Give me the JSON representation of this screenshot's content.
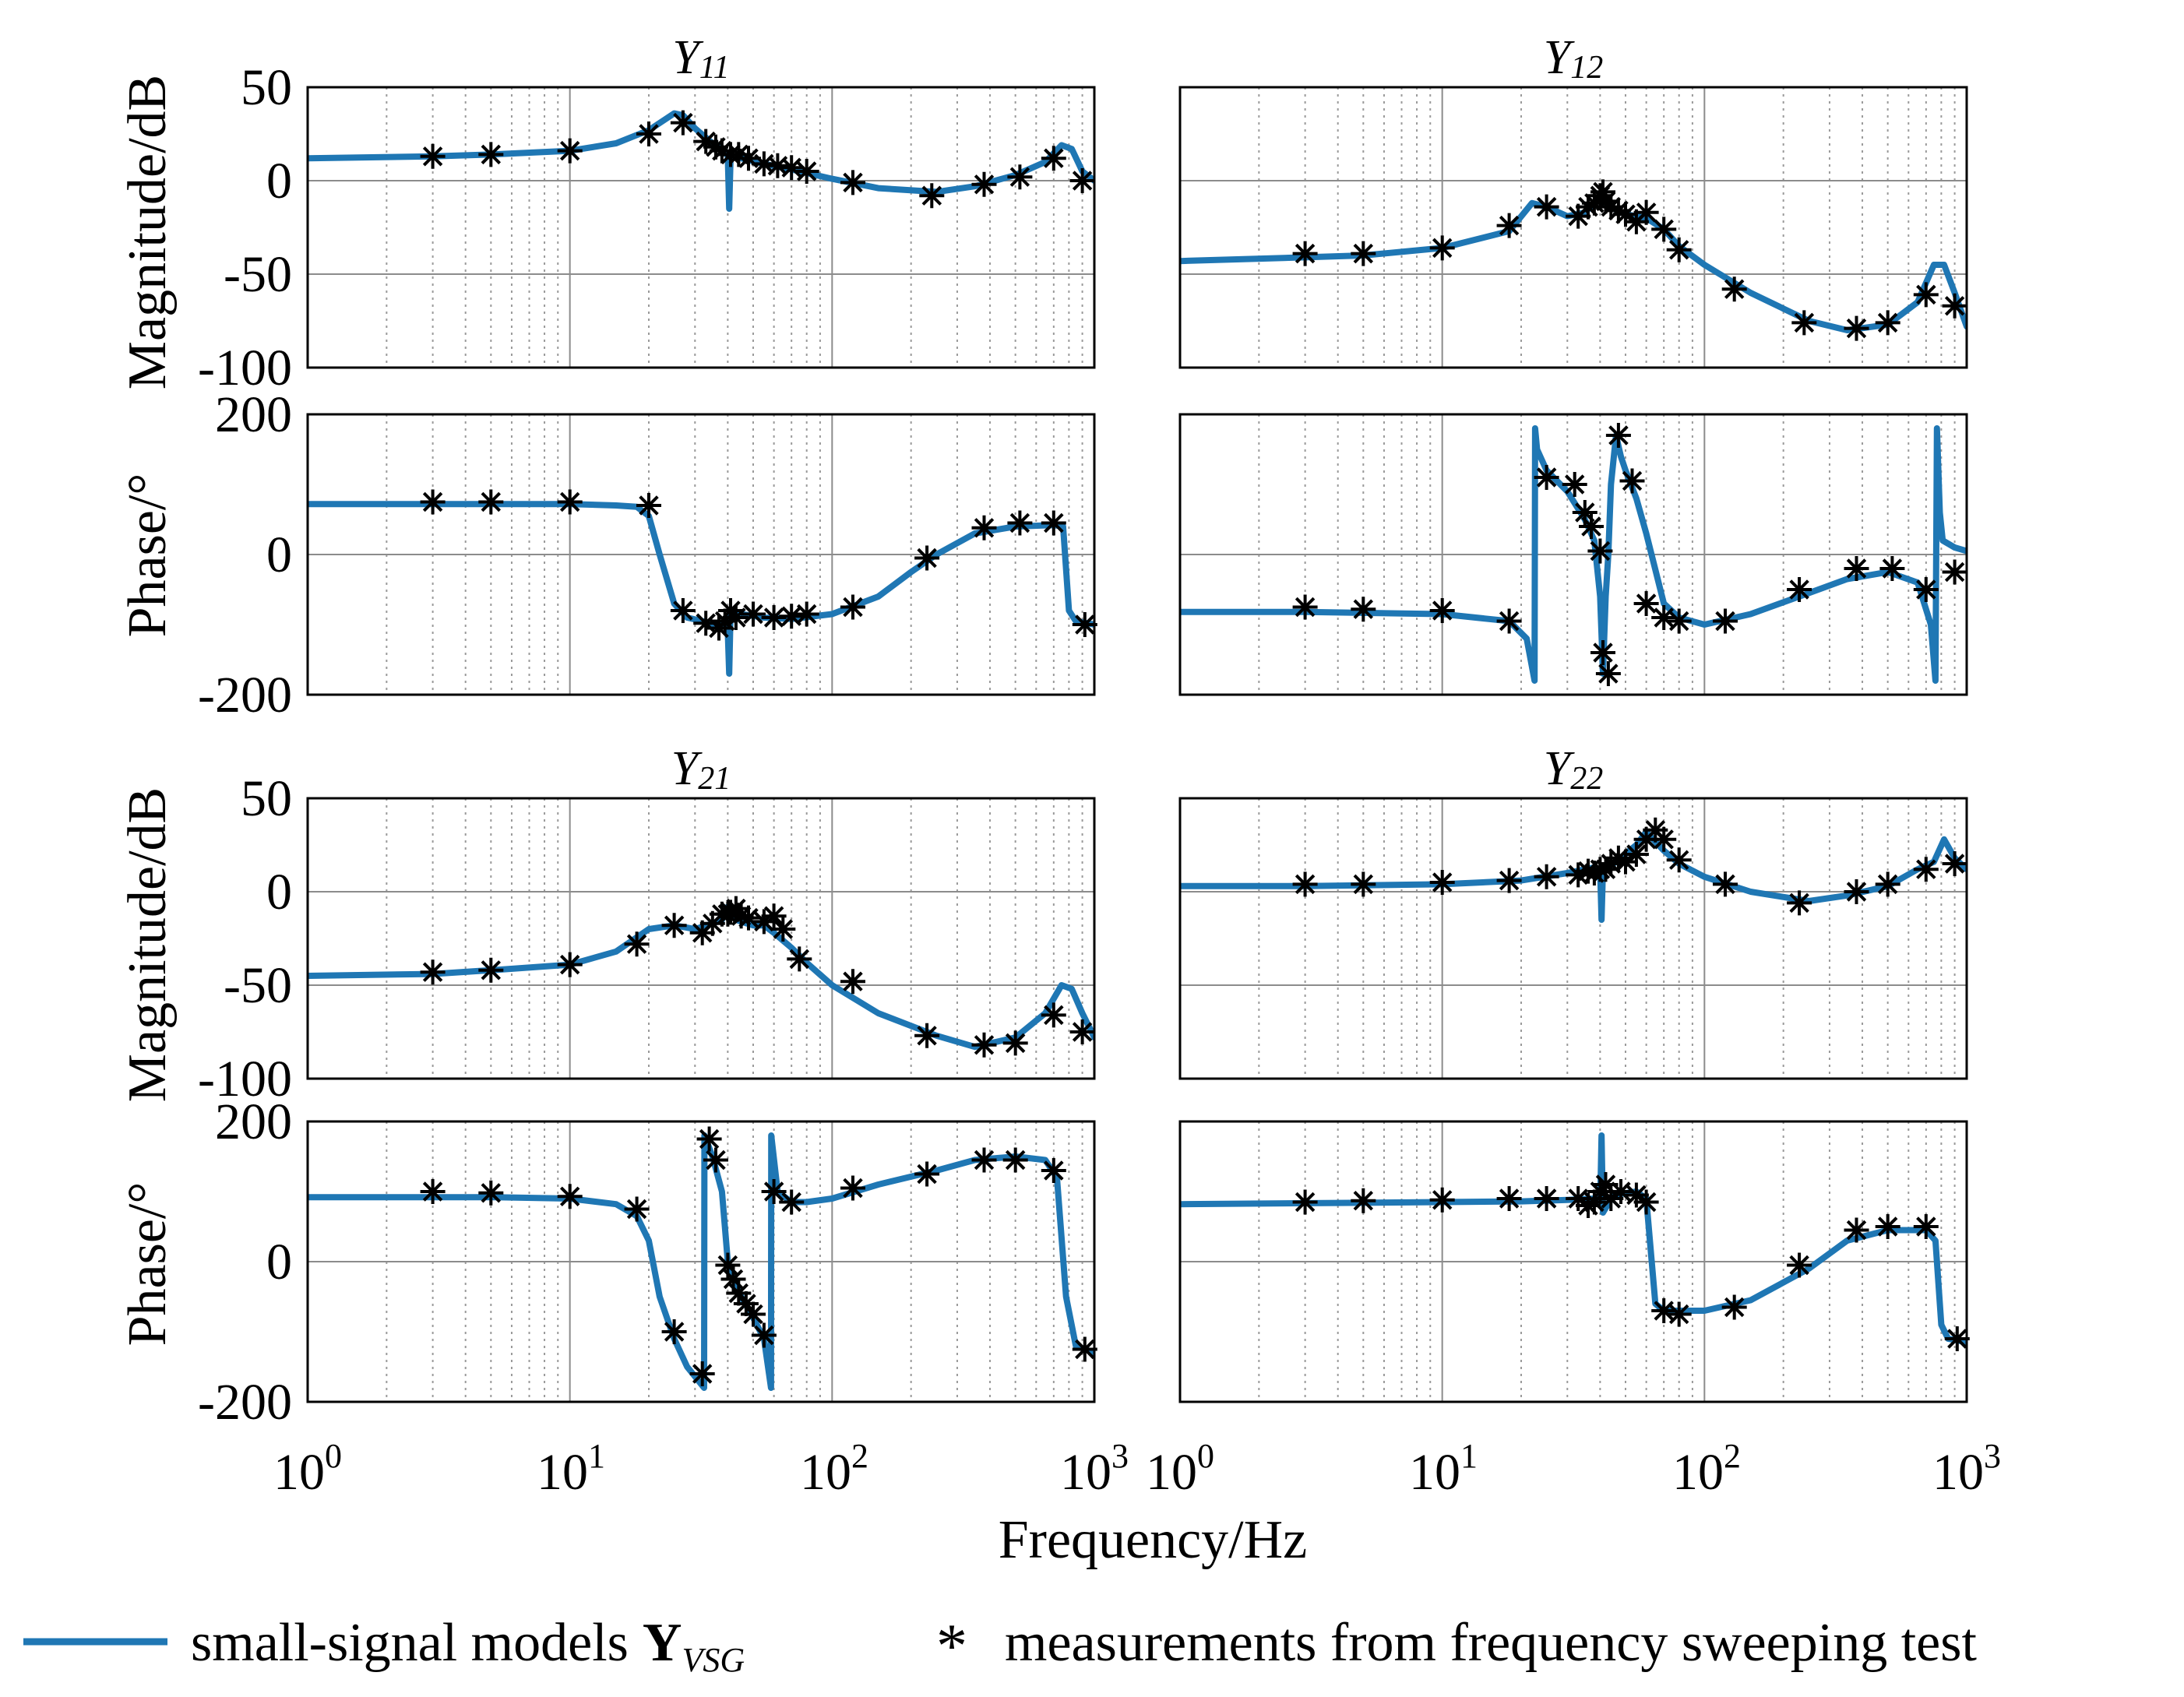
{
  "colors": {
    "model": "#1f77b4",
    "measurement": "#000000",
    "grid_major": "#8c8c8c",
    "grid_minor": "#9a9a9a"
  },
  "x_axis": {
    "label": "Frequency/Hz",
    "scale": "log",
    "xlim": [
      1,
      1000
    ],
    "ticks": [
      {
        "base": "10",
        "exp": "0"
      },
      {
        "base": "10",
        "exp": "1"
      },
      {
        "base": "10",
        "exp": "2"
      },
      {
        "base": "10",
        "exp": "3"
      }
    ]
  },
  "y_labels": {
    "magnitude": "Magnitude/dB",
    "phase": "Phase/°"
  },
  "mag_ticks": [
    "50",
    "0",
    "-50",
    "-100"
  ],
  "phase_ticks": [
    "200",
    "0",
    "-200"
  ],
  "legend": {
    "model_label": "small-signal models",
    "model_symbol": "Y",
    "model_subscript": "VSG",
    "marker_glyph": "*",
    "measurement_label": "measurements from frequency sweeping test"
  },
  "chart_data": [
    {
      "type": "line",
      "title": "Y",
      "title_sub": "11",
      "kind": "magnitude",
      "xlabel": "Frequency/Hz",
      "ylabel": "Magnitude/dB",
      "xscale": "log",
      "xlim": [
        1,
        1000
      ],
      "ylim": [
        -100,
        50
      ],
      "grid": true,
      "series": [
        {
          "name": "small-signal models Y_VSG",
          "x": [
            1,
            3,
            5,
            10,
            15,
            20,
            25,
            27,
            30,
            35,
            39,
            40,
            40.5,
            41,
            45,
            55,
            70,
            100,
            150,
            250,
            350,
            500,
            650,
            750,
            820,
            900,
            1000
          ],
          "y": [
            12,
            13,
            14,
            16,
            20,
            27,
            36,
            35,
            28,
            20,
            16,
            13,
            -15,
            13,
            12,
            9,
            6,
            1,
            -4,
            -6,
            -3,
            3,
            10,
            19,
            17,
            5,
            0
          ]
        },
        {
          "name": "measurements from frequency sweeping test",
          "x": [
            3,
            5,
            10,
            20,
            27,
            33,
            36,
            38,
            41,
            44,
            48,
            55,
            62,
            70,
            80,
            120,
            240,
            380,
            520,
            700,
            900
          ],
          "y": [
            13,
            14,
            16,
            25,
            31,
            21,
            18,
            16,
            14,
            14,
            12,
            9,
            8,
            7,
            5,
            -1,
            -8,
            -2,
            2,
            12,
            0
          ]
        }
      ]
    },
    {
      "type": "line",
      "title": "Y",
      "title_sub": "12",
      "kind": "magnitude",
      "xlabel": "Frequency/Hz",
      "ylabel": "Magnitude/dB",
      "xscale": "log",
      "xlim": [
        1,
        1000
      ],
      "ylim": [
        -100,
        50
      ],
      "grid": true,
      "series": [
        {
          "name": "small-signal models Y_VSG",
          "x": [
            1,
            3,
            5,
            10,
            18,
            22,
            25,
            30,
            35,
            38,
            40,
            41,
            43,
            45,
            50,
            55,
            60,
            70,
            80,
            100,
            150,
            250,
            350,
            500,
            650,
            750,
            820,
            900,
            1000
          ],
          "y": [
            -43,
            -41,
            -40,
            -36,
            -27,
            -12,
            -14,
            -19,
            -17,
            -12,
            -8,
            -12,
            -14,
            -15,
            -18,
            -19,
            -20,
            -26,
            -35,
            -45,
            -60,
            -75,
            -80,
            -77,
            -65,
            -45,
            -45,
            -60,
            -78
          ]
        },
        {
          "name": "measurements from frequency sweeping test",
          "x": [
            3,
            5,
            10,
            18,
            25,
            33,
            36,
            38,
            40,
            41,
            42,
            44,
            47,
            50,
            55,
            60,
            70,
            80,
            130,
            240,
            380,
            500,
            700,
            900
          ],
          "y": [
            -39,
            -39,
            -36,
            -24,
            -14,
            -19,
            -14,
            -12,
            -8,
            -6,
            -11,
            -14,
            -16,
            -18,
            -22,
            -17,
            -26,
            -37,
            -58,
            -76,
            -79,
            -76,
            -61,
            -67
          ]
        }
      ]
    },
    {
      "type": "line",
      "title": "Y",
      "title_sub": "11",
      "kind": "phase",
      "xlabel": "Frequency/Hz",
      "ylabel": "Phase/°",
      "xscale": "log",
      "xlim": [
        1,
        1000
      ],
      "ylim": [
        -200,
        200
      ],
      "grid": true,
      "series": [
        {
          "name": "small-signal models Y_VSG",
          "x": [
            1,
            5,
            10,
            15,
            18,
            20,
            22,
            25,
            28,
            32,
            36,
            39,
            40,
            40.5,
            41,
            45,
            55,
            70,
            100,
            150,
            200,
            250,
            350,
            500,
            700,
            760,
            800,
            850,
            1000
          ],
          "y": [
            72,
            72,
            72,
            70,
            68,
            55,
            0,
            -70,
            -90,
            -95,
            -100,
            -100,
            -110,
            -170,
            -80,
            -85,
            -90,
            -92,
            -85,
            -60,
            -25,
            0,
            30,
            40,
            42,
            40,
            -80,
            -95,
            -100
          ]
        },
        {
          "name": "measurements from frequency sweeping test",
          "x": [
            3,
            5,
            10,
            20,
            27,
            33,
            37,
            39,
            41,
            43,
            50,
            60,
            70,
            80,
            120,
            230,
            380,
            520,
            700,
            920
          ],
          "y": [
            75,
            75,
            75,
            70,
            -80,
            -98,
            -105,
            -95,
            -80,
            -90,
            -85,
            -90,
            -88,
            -85,
            -75,
            -5,
            38,
            45,
            45,
            -100
          ]
        }
      ]
    },
    {
      "type": "line",
      "title": "Y",
      "title_sub": "12",
      "kind": "phase",
      "xlabel": "Frequency/Hz",
      "ylabel": "Phase/°",
      "xscale": "log",
      "xlim": [
        1,
        1000
      ],
      "ylim": [
        -200,
        200
      ],
      "grid": true,
      "series": [
        {
          "name": "small-signal models Y_VSG",
          "x": [
            1,
            3,
            10,
            18,
            21,
            22.5,
            22.6,
            23,
            25,
            30,
            35,
            38,
            40,
            41,
            42,
            43,
            44,
            46,
            48,
            50,
            55,
            60,
            70,
            80,
            100,
            150,
            250,
            350,
            500,
            650,
            730,
            760,
            770,
            790,
            810,
            900,
            1000
          ],
          "y": [
            -82,
            -82,
            -85,
            -95,
            -120,
            -180,
            180,
            150,
            120,
            90,
            50,
            20,
            -60,
            -170,
            -60,
            0,
            100,
            170,
            140,
            120,
            80,
            30,
            -70,
            -90,
            -100,
            -85,
            -55,
            -35,
            -25,
            -40,
            -100,
            -180,
            180,
            60,
            20,
            10,
            5
          ]
        },
        {
          "name": "measurements from frequency sweeping test",
          "x": [
            3,
            5,
            10,
            18,
            25,
            32,
            35,
            37,
            40,
            41,
            43,
            47,
            53,
            60,
            70,
            80,
            120,
            230,
            380,
            520,
            700,
            900
          ],
          "y": [
            -75,
            -78,
            -80,
            -95,
            110,
            100,
            60,
            40,
            5,
            -140,
            -170,
            170,
            105,
            -70,
            -90,
            -95,
            -95,
            -50,
            -20,
            -20,
            -50,
            -25
          ]
        }
      ]
    },
    {
      "type": "line",
      "title": "Y",
      "title_sub": "21",
      "kind": "magnitude",
      "xlabel": "Frequency/Hz",
      "ylabel": "Magnitude/dB",
      "xscale": "log",
      "xlim": [
        1,
        1000
      ],
      "ylim": [
        -100,
        50
      ],
      "grid": true,
      "series": [
        {
          "name": "small-signal models Y_VSG",
          "x": [
            1,
            3,
            5,
            10,
            15,
            20,
            25,
            30,
            35,
            38,
            40,
            41,
            43,
            45,
            50,
            55,
            60,
            70,
            80,
            100,
            150,
            250,
            350,
            500,
            650,
            750,
            820,
            900,
            1000
          ],
          "y": [
            -45,
            -44,
            -42,
            -39,
            -32,
            -20,
            -18,
            -20,
            -17,
            -15,
            -8,
            -12,
            -15,
            -16,
            -18,
            -18,
            -22,
            -30,
            -38,
            -50,
            -65,
            -77,
            -83,
            -78,
            -65,
            -50,
            -52,
            -65,
            -78
          ]
        },
        {
          "name": "measurements from frequency sweeping test",
          "x": [
            3,
            5,
            10,
            18,
            25,
            32,
            35,
            38,
            40,
            41,
            43,
            45,
            48,
            55,
            60,
            65,
            75,
            120,
            230,
            380,
            500,
            700,
            900
          ],
          "y": [
            -43,
            -42,
            -39,
            -28,
            -18,
            -22,
            -17,
            -12,
            -12,
            -11,
            -9,
            -13,
            -14,
            -16,
            -13,
            -20,
            -36,
            -48,
            -77,
            -82,
            -81,
            -66,
            -75
          ]
        }
      ]
    },
    {
      "type": "line",
      "title": "Y",
      "title_sub": "22",
      "kind": "magnitude",
      "xlabel": "Frequency/Hz",
      "ylabel": "Magnitude/dB",
      "xscale": "log",
      "xlim": [
        1,
        1000
      ],
      "ylim": [
        -100,
        50
      ],
      "grid": true,
      "series": [
        {
          "name": "small-signal models Y_VSG",
          "x": [
            1,
            3,
            10,
            20,
            30,
            38,
            40,
            40.5,
            41,
            45,
            55,
            60,
            70,
            80,
            100,
            150,
            250,
            350,
            500,
            650,
            750,
            820,
            900,
            1000
          ],
          "y": [
            3,
            3,
            4,
            6,
            10,
            13,
            12,
            -15,
            12,
            15,
            25,
            32,
            22,
            15,
            8,
            0,
            -5,
            -2,
            3,
            12,
            16,
            28,
            18,
            12
          ]
        },
        {
          "name": "measurements from frequency sweeping test",
          "x": [
            3,
            5,
            10,
            18,
            25,
            33,
            36,
            38,
            40,
            42,
            44,
            47,
            50,
            55,
            60,
            65,
            70,
            80,
            120,
            230,
            380,
            500,
            700,
            900
          ],
          "y": [
            4,
            4,
            5,
            6,
            8,
            9,
            11,
            10,
            12,
            12,
            15,
            18,
            16,
            20,
            28,
            33,
            28,
            17,
            4,
            -6,
            0,
            4,
            12,
            15
          ]
        }
      ]
    },
    {
      "type": "line",
      "title": "Y",
      "title_sub": "21",
      "kind": "phase",
      "xlabel": "Frequency/Hz",
      "ylabel": "Phase/°",
      "xscale": "log",
      "xlim": [
        1,
        1000
      ],
      "ylim": [
        -200,
        200
      ],
      "grid": true,
      "series": [
        {
          "name": "small-signal models Y_VSG",
          "x": [
            1,
            5,
            10,
            15,
            18,
            20,
            22,
            25,
            28,
            32.5,
            32.6,
            35,
            38,
            40,
            45,
            50,
            55,
            58.5,
            58.6,
            62,
            70,
            80,
            100,
            150,
            250,
            350,
            500,
            650,
            720,
            780,
            850,
            1000
          ],
          "y": [
            92,
            92,
            90,
            82,
            65,
            30,
            -50,
            -110,
            -150,
            -180,
            180,
            150,
            100,
            0,
            -50,
            -80,
            -110,
            -180,
            180,
            100,
            85,
            85,
            90,
            110,
            130,
            145,
            150,
            145,
            120,
            -50,
            -120,
            -130
          ]
        },
        {
          "name": "measurements from frequency sweeping test",
          "x": [
            3,
            5,
            10,
            18,
            25,
            32,
            34,
            36,
            40,
            42,
            44,
            47,
            50,
            55,
            60,
            70,
            120,
            230,
            380,
            500,
            700,
            920
          ],
          "y": [
            100,
            98,
            93,
            75,
            -100,
            -160,
            175,
            145,
            -5,
            -25,
            -45,
            -60,
            -75,
            -105,
            100,
            85,
            105,
            125,
            145,
            145,
            130,
            -125
          ]
        }
      ]
    },
    {
      "type": "line",
      "title": "Y",
      "title_sub": "22",
      "kind": "phase",
      "xlabel": "Frequency/Hz",
      "ylabel": "Phase/°",
      "xscale": "log",
      "xlim": [
        1,
        1000
      ],
      "ylim": [
        -200,
        200
      ],
      "grid": true,
      "series": [
        {
          "name": "small-signal models Y_VSG",
          "x": [
            1,
            5,
            10,
            20,
            30,
            38,
            40,
            40.5,
            41,
            45,
            55,
            60,
            65,
            70,
            100,
            150,
            250,
            350,
            500,
            700,
            760,
            800,
            850,
            1000
          ],
          "y": [
            82,
            84,
            85,
            86,
            88,
            90,
            80,
            180,
            70,
            95,
            100,
            90,
            -60,
            -70,
            -70,
            -55,
            -10,
            30,
            45,
            45,
            30,
            -90,
            -110,
            -115
          ]
        },
        {
          "name": "measurements from frequency sweeping test",
          "x": [
            3,
            5,
            10,
            18,
            25,
            33,
            36,
            38,
            40,
            42,
            44,
            48,
            55,
            60,
            70,
            80,
            130,
            230,
            380,
            500,
            700,
            920
          ],
          "y": [
            85,
            87,
            88,
            90,
            90,
            90,
            80,
            85,
            100,
            110,
            90,
            100,
            95,
            85,
            -70,
            -75,
            -65,
            -5,
            45,
            50,
            50,
            -110
          ]
        }
      ]
    }
  ]
}
